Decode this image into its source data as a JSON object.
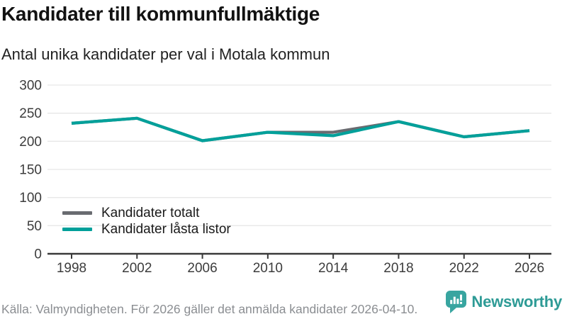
{
  "title": "Kandidater till kommunfullmäktige",
  "subtitle": "Antal unika kandidater per val i Motala kommun",
  "source": "Källa: Valmyndigheten. För 2026 gäller det anmälda kandidater 2026-04-10.",
  "brand": {
    "name": "Newsworthy",
    "wordmark_color": "#2e9b96",
    "icon": "bar-chart-speech-bubble-icon",
    "icon_color": "#38a5a0"
  },
  "colors": {
    "series_total_gray": "#696b70",
    "series_lasta_teal": "#00a09a",
    "grid": "#e7e7e7",
    "axis": "#3a3a3a",
    "tick_text": "#3c3c3c",
    "legend_text": "#1a1a1a",
    "muted_text": "#8b8e92"
  },
  "legend": {
    "items": [
      {
        "label": "Kandidater totalt",
        "color": "#696b70"
      },
      {
        "label": "Kandidater låsta listor",
        "color": "#00a09a"
      }
    ]
  },
  "chart_data": {
    "type": "line",
    "title": "Kandidater till kommunfullmäktige",
    "subtitle": "Antal unika kandidater per val i Motala kommun",
    "categories": [
      1998,
      2002,
      2006,
      2010,
      2014,
      2018,
      2022,
      2026
    ],
    "series": [
      {
        "name": "Kandidater totalt",
        "color": "#696b70",
        "values": [
          232,
          241,
          201,
          216,
          216,
          235,
          208,
          219
        ]
      },
      {
        "name": "Kandidater låsta listor",
        "color": "#00a09a",
        "values": [
          232,
          241,
          201,
          216,
          210,
          235,
          208,
          219
        ]
      }
    ],
    "xlabel": "",
    "ylabel": "",
    "ylim": [
      0,
      300
    ],
    "yticks": [
      0,
      50,
      100,
      150,
      200,
      250,
      300
    ],
    "grid": true,
    "legend_position": "inside-bottom-left"
  }
}
